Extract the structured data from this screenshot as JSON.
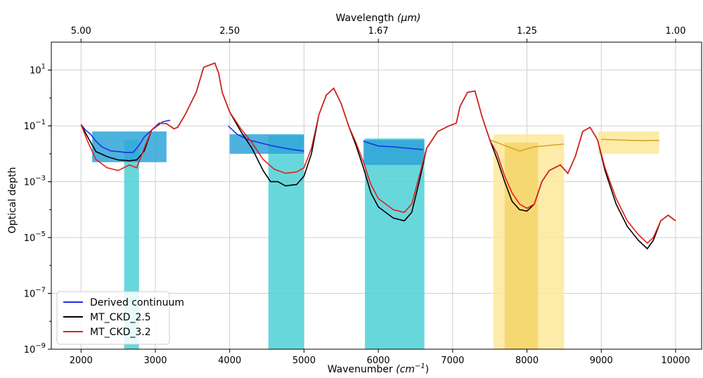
{
  "chart_data": {
    "type": "line",
    "xlabel": "Wavenumber",
    "xlabel_unit": "(cm",
    "xlabel_unit_sup": "−1",
    "xlabel_unit_close": ")",
    "ylabel": "Optical depth",
    "top_xlabel": "Wavelength",
    "top_xlabel_unit": "(μm)",
    "xlim": [
      1600,
      10350
    ],
    "ylim_exponent": [
      -9,
      2
    ],
    "y_scale": "log",
    "grid": true,
    "legend_placement": "lower-left",
    "x_ticks": [
      {
        "value": 2000,
        "label": "2000"
      },
      {
        "value": 3000,
        "label": "3000"
      },
      {
        "value": 4000,
        "label": "4000"
      },
      {
        "value": 5000,
        "label": "5000"
      },
      {
        "value": 6000,
        "label": "6000"
      },
      {
        "value": 7000,
        "label": "7000"
      },
      {
        "value": 8000,
        "label": "8000"
      },
      {
        "value": 9000,
        "label": "9000"
      },
      {
        "value": 10000,
        "label": "10000"
      }
    ],
    "top_ticks": [
      {
        "value": 2000,
        "label": "5.00"
      },
      {
        "value": 4000,
        "label": "2.50"
      },
      {
        "value": 6000,
        "label": "1.67"
      },
      {
        "value": 8000,
        "label": "1.25"
      },
      {
        "value": 10000,
        "label": "1.00"
      }
    ],
    "y_ticks": [
      {
        "exp": 1,
        "base": "10",
        "sup": "1"
      },
      {
        "exp": -1,
        "base": "10",
        "sup": "−1"
      },
      {
        "exp": -3,
        "base": "10",
        "sup": "−3"
      },
      {
        "exp": -5,
        "base": "10",
        "sup": "−5"
      },
      {
        "exp": -7,
        "base": "10",
        "sup": "−7"
      },
      {
        "exp": -9,
        "base": "10",
        "sup": "−9"
      }
    ],
    "series": [
      {
        "name": "Derived continuum",
        "color": "#1f2fe0",
        "segments": [
          [
            [
              2000,
              -0.95
            ],
            [
              2060,
              -1.15
            ],
            [
              2130,
              -1.3
            ],
            [
              2200,
              -1.55
            ],
            [
              2280,
              -1.75
            ],
            [
              2400,
              -1.9
            ],
            [
              2500,
              -1.92
            ],
            [
              2600,
              -1.95
            ],
            [
              2700,
              -1.95
            ],
            [
              2780,
              -1.7
            ],
            [
              2850,
              -1.4
            ],
            [
              2950,
              -1.15
            ],
            [
              3050,
              -0.95
            ],
            [
              3100,
              -0.85
            ],
            [
              3200,
              -0.8
            ]
          ],
          [
            [
              3980,
              -1.0
            ],
            [
              4100,
              -1.3
            ],
            [
              4250,
              -1.5
            ],
            [
              4400,
              -1.6
            ],
            [
              4550,
              -1.7
            ],
            [
              4700,
              -1.78
            ],
            [
              4850,
              -1.85
            ],
            [
              5000,
              -1.9
            ]
          ],
          [
            [
              5800,
              -1.55
            ],
            [
              6000,
              -1.72
            ],
            [
              6200,
              -1.75
            ],
            [
              6400,
              -1.8
            ],
            [
              6600,
              -1.85
            ]
          ]
        ]
      },
      {
        "name": "MT_CKD_2.5",
        "color": "#000000",
        "points": [
          [
            2000,
            -0.95
          ],
          [
            2080,
            -1.35
          ],
          [
            2200,
            -1.92
          ],
          [
            2350,
            -2.1
          ],
          [
            2500,
            -2.22
          ],
          [
            2650,
            -2.25
          ],
          [
            2750,
            -2.22
          ],
          [
            2850,
            -1.9
          ],
          [
            2950,
            -1.15
          ],
          [
            3050,
            -0.9
          ],
          [
            3150,
            -0.92
          ],
          [
            3250,
            -1.1
          ],
          [
            3300,
            -1.05
          ],
          [
            3400,
            -0.6
          ],
          [
            3550,
            0.2
          ],
          [
            3650,
            1.1
          ],
          [
            3750,
            1.2
          ],
          [
            3800,
            1.25
          ],
          [
            3850,
            0.9
          ],
          [
            3900,
            0.2
          ],
          [
            4000,
            -0.5
          ],
          [
            4150,
            -1.2
          ],
          [
            4300,
            -1.8
          ],
          [
            4450,
            -2.6
          ],
          [
            4550,
            -3.0
          ],
          [
            4650,
            -3.0
          ],
          [
            4750,
            -3.15
          ],
          [
            4900,
            -3.1
          ],
          [
            5000,
            -2.8
          ],
          [
            5100,
            -2.0
          ],
          [
            5200,
            -0.6
          ],
          [
            5300,
            0.1
          ],
          [
            5400,
            0.35
          ],
          [
            5500,
            -0.2
          ],
          [
            5600,
            -1.0
          ],
          [
            5700,
            -1.7
          ],
          [
            5800,
            -2.5
          ],
          [
            5900,
            -3.4
          ],
          [
            6000,
            -3.9
          ],
          [
            6200,
            -4.3
          ],
          [
            6350,
            -4.4
          ],
          [
            6450,
            -4.1
          ],
          [
            6550,
            -3.0
          ],
          [
            6650,
            -1.8
          ],
          [
            6800,
            -1.2
          ],
          [
            6950,
            -1.0
          ],
          [
            7050,
            -0.9
          ],
          [
            7100,
            -0.3
          ],
          [
            7200,
            0.2
          ],
          [
            7300,
            0.25
          ],
          [
            7400,
            -0.7
          ],
          [
            7500,
            -1.5
          ],
          [
            7600,
            -2.2
          ],
          [
            7700,
            -3.0
          ],
          [
            7800,
            -3.7
          ],
          [
            7900,
            -4.0
          ],
          [
            8000,
            -4.05
          ],
          [
            8100,
            -3.8
          ],
          [
            8200,
            -3.0
          ],
          [
            8300,
            -2.6
          ],
          [
            8450,
            -2.4
          ],
          [
            8550,
            -2.7
          ],
          [
            8650,
            -2.1
          ],
          [
            8750,
            -1.2
          ],
          [
            8850,
            -1.05
          ],
          [
            8950,
            -1.5
          ],
          [
            9050,
            -2.6
          ],
          [
            9200,
            -3.8
          ],
          [
            9350,
            -4.6
          ],
          [
            9500,
            -5.1
          ],
          [
            9620,
            -5.4
          ],
          [
            9700,
            -5.1
          ],
          [
            9800,
            -4.4
          ],
          [
            9900,
            -4.2
          ],
          [
            10000,
            -4.4
          ]
        ]
      },
      {
        "name": "MT_CKD_3.2",
        "color": "#e0201c",
        "points": [
          [
            2000,
            -0.95
          ],
          [
            2080,
            -1.5
          ],
          [
            2200,
            -2.2
          ],
          [
            2350,
            -2.5
          ],
          [
            2500,
            -2.6
          ],
          [
            2650,
            -2.4
          ],
          [
            2750,
            -2.5
          ],
          [
            2850,
            -1.8
          ],
          [
            2950,
            -1.15
          ],
          [
            3050,
            -0.9
          ],
          [
            3150,
            -0.92
          ],
          [
            3250,
            -1.1
          ],
          [
            3300,
            -1.05
          ],
          [
            3400,
            -0.6
          ],
          [
            3550,
            0.2
          ],
          [
            3650,
            1.1
          ],
          [
            3750,
            1.2
          ],
          [
            3800,
            1.25
          ],
          [
            3850,
            0.9
          ],
          [
            3900,
            0.2
          ],
          [
            4000,
            -0.5
          ],
          [
            4150,
            -1.1
          ],
          [
            4300,
            -1.6
          ],
          [
            4450,
            -2.2
          ],
          [
            4600,
            -2.55
          ],
          [
            4750,
            -2.7
          ],
          [
            4900,
            -2.65
          ],
          [
            5000,
            -2.5
          ],
          [
            5100,
            -1.8
          ],
          [
            5200,
            -0.6
          ],
          [
            5300,
            0.1
          ],
          [
            5400,
            0.35
          ],
          [
            5500,
            -0.2
          ],
          [
            5600,
            -1.0
          ],
          [
            5700,
            -1.6
          ],
          [
            5800,
            -2.3
          ],
          [
            5900,
            -3.1
          ],
          [
            6000,
            -3.6
          ],
          [
            6200,
            -4.0
          ],
          [
            6350,
            -4.1
          ],
          [
            6450,
            -3.8
          ],
          [
            6550,
            -2.8
          ],
          [
            6650,
            -1.8
          ],
          [
            6800,
            -1.2
          ],
          [
            6950,
            -1.0
          ],
          [
            7050,
            -0.9
          ],
          [
            7100,
            -0.3
          ],
          [
            7200,
            0.2
          ],
          [
            7300,
            0.25
          ],
          [
            7400,
            -0.7
          ],
          [
            7500,
            -1.5
          ],
          [
            7600,
            -2.0
          ],
          [
            7700,
            -2.8
          ],
          [
            7800,
            -3.4
          ],
          [
            7900,
            -3.8
          ],
          [
            8000,
            -3.95
          ],
          [
            8100,
            -3.8
          ],
          [
            8200,
            -3.0
          ],
          [
            8300,
            -2.6
          ],
          [
            8450,
            -2.4
          ],
          [
            8550,
            -2.7
          ],
          [
            8650,
            -2.1
          ],
          [
            8750,
            -1.2
          ],
          [
            8850,
            -1.05
          ],
          [
            8950,
            -1.5
          ],
          [
            9050,
            -2.5
          ],
          [
            9200,
            -3.6
          ],
          [
            9350,
            -4.4
          ],
          [
            9500,
            -4.9
          ],
          [
            9620,
            -5.2
          ],
          [
            9700,
            -5.0
          ],
          [
            9800,
            -4.4
          ],
          [
            9900,
            -4.2
          ],
          [
            10000,
            -4.4
          ]
        ]
      }
    ],
    "uncertainty_bands": [
      {
        "band": "cyan-outer",
        "color": "#4dd0d6",
        "x_range": [
          2580,
          2780
        ],
        "y_range": [
          -9,
          -1.5
        ]
      },
      {
        "band": "cyan-outer",
        "color": "#4dd0d6",
        "x_range": [
          4520,
          5000
        ],
        "y_range": [
          -9,
          -1.35
        ]
      },
      {
        "band": "cyan-outer",
        "color": "#4dd0d6",
        "x_range": [
          5820,
          6620
        ],
        "y_range": [
          -9,
          -1.45
        ]
      },
      {
        "band": "cyan-inner",
        "color": "#2fa4d8",
        "x_range": [
          2150,
          3150
        ],
        "y_range": [
          -2.3,
          -1.2
        ]
      },
      {
        "band": "cyan-inner",
        "color": "#2fa4d8",
        "x_range": [
          4000,
          5000
        ],
        "y_range": [
          -2.0,
          -1.3
        ]
      },
      {
        "band": "cyan-inner",
        "color": "#2fa4d8",
        "x_range": [
          5800,
          6620
        ],
        "y_range": [
          -2.4,
          -1.5
        ]
      },
      {
        "band": "gold-outer",
        "color": "#fde79a",
        "x_range": [
          7550,
          8500
        ],
        "y_range": [
          -9,
          -1.3
        ]
      },
      {
        "band": "gold-inner",
        "color": "#f5d56a",
        "x_range": [
          7700,
          8150
        ],
        "y_range": [
          -9,
          -1.6
        ]
      },
      {
        "band": "gold-outer",
        "color": "#fde79a",
        "x_range": [
          8960,
          9780
        ],
        "y_range": [
          -2.0,
          -1.2
        ]
      }
    ],
    "gold_series": [
      {
        "color": "#d9a520",
        "points": [
          [
            7500,
            -1.5
          ],
          [
            7700,
            -1.7
          ],
          [
            7900,
            -1.9
          ],
          [
            8100,
            -1.75
          ],
          [
            8300,
            -1.7
          ],
          [
            8500,
            -1.65
          ]
        ]
      },
      {
        "color": "#d9a520",
        "points": [
          [
            9000,
            -1.48
          ],
          [
            9200,
            -1.5
          ],
          [
            9400,
            -1.52
          ],
          [
            9600,
            -1.53
          ],
          [
            9780,
            -1.52
          ]
        ]
      }
    ]
  }
}
